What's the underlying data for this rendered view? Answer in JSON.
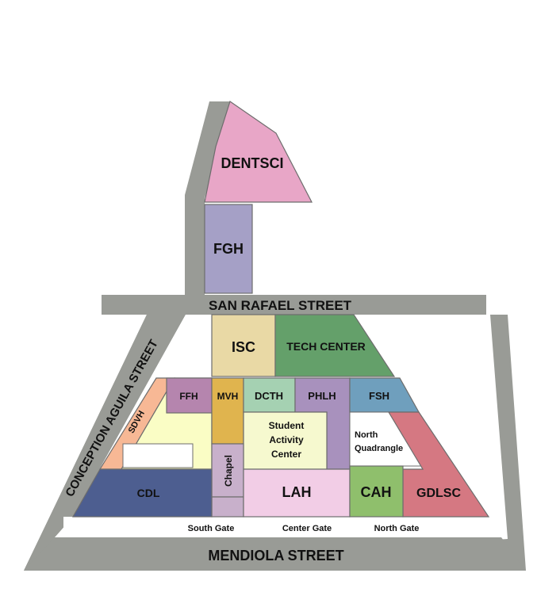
{
  "streets": {
    "san_rafael": "SAN RAFAEL STREET",
    "concepcion_aguila": "CONCEPTION AGUILA STREET",
    "mendiola": "MENDIOLA STREET"
  },
  "buildings": {
    "dentsci": "DENTSCI",
    "fgh": "FGH",
    "isc": "ISC",
    "tech_center": "TECH CENTER",
    "ffh": "FFH",
    "mvh": "MVH",
    "dcth": "DCTH",
    "phlh": "PHLH",
    "fsh": "FSH",
    "sdvh": "SDVH",
    "student_activity_center": [
      "Student",
      "Activity",
      "Center"
    ],
    "north_quadrangle": [
      "North",
      "Quadrangle"
    ],
    "chapel": "Chapel",
    "cdl": "CDL",
    "lah": "LAH",
    "cah": "CAH",
    "gdlsc": "GDLSC"
  },
  "gates": {
    "south": "South Gate",
    "center": "Center Gate",
    "north": "North Gate"
  },
  "colors": {
    "street": "#999b96",
    "dentsci": "#e8a6c7",
    "fgh": "#a5a0c6",
    "isc": "#e9d9a5",
    "tech_center": "#64a06a",
    "ffh": "#b585ae",
    "mvh": "#e0b44e",
    "dcth": "#a5d1b2",
    "phlh": "#a891bd",
    "fsh": "#6f9fbd",
    "sdvh": "#f7b895",
    "yellow_block": "#fafdc5",
    "student_activity_center": "#f6f9cf",
    "chapel": "#c8b0cb",
    "cdl": "#4d5e90",
    "lah": "#f2cde6",
    "cah": "#8fbf6c",
    "gdlsc": "#d57882"
  }
}
